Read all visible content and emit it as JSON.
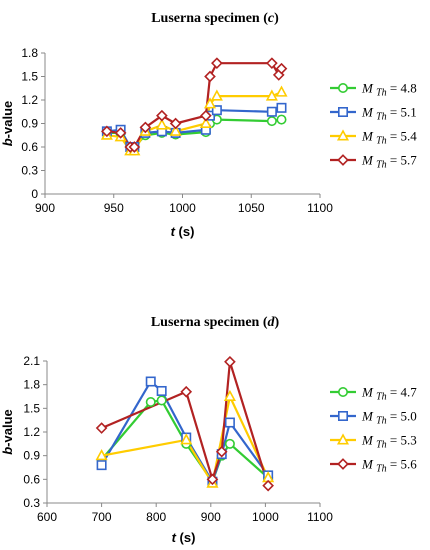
{
  "chart_data": [
    {
      "type": "line",
      "title": "Luserna specimen (c)",
      "title_prefix": "Luserna specimen (",
      "title_letter": "c",
      "title_suffix": ")",
      "xlabel": "t (s)",
      "xlabel_var": "t",
      "xlabel_unit": " (s)",
      "ylabel": "b-value",
      "ylabel_var": "b",
      "ylabel_rest": "-value",
      "xlim": [
        900,
        1100
      ],
      "ylim": [
        0,
        1.8
      ],
      "xticks": [
        "900",
        "950",
        "1000",
        "1050",
        "1100"
      ],
      "yticks": [
        "0",
        "0.3",
        "0.6",
        "0.9",
        "1.2",
        "1.5",
        "1.8"
      ],
      "grid": false,
      "legend": "right",
      "series": [
        {
          "name": "M Th = 4.8",
          "legend_m": "M",
          "legend_sub": "Th",
          "legend_val": " = 4.8",
          "color": "#33cc33",
          "marker": "circle",
          "points": [
            [
              945,
              0.78
            ],
            [
              955,
              0.78
            ],
            [
              962,
              0.6
            ],
            [
              965,
              0.6
            ],
            [
              973,
              0.75
            ],
            [
              985,
              0.78
            ],
            [
              995,
              0.76
            ],
            [
              1017,
              0.79
            ],
            [
              1020,
              0.9
            ],
            [
              1025,
              0.95
            ],
            [
              1065,
              0.93
            ],
            [
              1072,
              0.95
            ]
          ]
        },
        {
          "name": "M Th = 5.1",
          "legend_m": "M",
          "legend_sub": "Th",
          "legend_val": " = 5.1",
          "color": "#3366cc",
          "marker": "square",
          "points": [
            [
              945,
              0.8
            ],
            [
              955,
              0.82
            ],
            [
              962,
              0.6
            ],
            [
              965,
              0.6
            ],
            [
              973,
              0.78
            ],
            [
              985,
              0.8
            ],
            [
              995,
              0.78
            ],
            [
              1017,
              0.82
            ],
            [
              1020,
              1.0
            ],
            [
              1025,
              1.07
            ],
            [
              1065,
              1.05
            ],
            [
              1072,
              1.1
            ]
          ]
        },
        {
          "name": "M Th = 5.4",
          "legend_m": "M",
          "legend_sub": "Th",
          "legend_val": " = 5.4",
          "color": "#ffcc00",
          "marker": "triangle",
          "points": [
            [
              945,
              0.75
            ],
            [
              955,
              0.73
            ],
            [
              962,
              0.55
            ],
            [
              965,
              0.55
            ],
            [
              973,
              0.8
            ],
            [
              985,
              0.88
            ],
            [
              995,
              0.8
            ],
            [
              1017,
              0.9
            ],
            [
              1020,
              1.15
            ],
            [
              1025,
              1.25
            ],
            [
              1065,
              1.25
            ],
            [
              1072,
              1.3
            ]
          ]
        },
        {
          "name": "M Th = 5.7",
          "legend_m": "M",
          "legend_sub": "Th",
          "legend_val": " = 5.7",
          "color": "#b22222",
          "marker": "diamond",
          "points": [
            [
              945,
              0.8
            ],
            [
              955,
              0.78
            ],
            [
              962,
              0.6
            ],
            [
              965,
              0.6
            ],
            [
              973,
              0.85
            ],
            [
              985,
              1.0
            ],
            [
              995,
              0.9
            ],
            [
              1017,
              1.0
            ],
            [
              1020,
              1.5
            ],
            [
              1025,
              1.67
            ],
            [
              1065,
              1.67
            ],
            [
              1070,
              1.52
            ],
            [
              1072,
              1.6
            ]
          ]
        }
      ]
    },
    {
      "type": "line",
      "title": "Luserna specimen (d)",
      "title_prefix": "Luserna specimen (",
      "title_letter": "d",
      "title_suffix": ")",
      "xlabel": "t (s)",
      "xlabel_var": "t",
      "xlabel_unit": " (s)",
      "ylabel": "b-value",
      "ylabel_var": "b",
      "ylabel_rest": "-value",
      "xlim": [
        600,
        1100
      ],
      "ylim": [
        0.3,
        2.1
      ],
      "xticks": [
        "600",
        "700",
        "800",
        "900",
        "1000",
        "1100"
      ],
      "yticks": [
        "0.3",
        "0.6",
        "0.9",
        "1.2",
        "1.5",
        "1.8",
        "2.1"
      ],
      "grid": false,
      "legend": "right",
      "series": [
        {
          "name": "M Th = 4.7",
          "legend_m": "M",
          "legend_sub": "Th",
          "legend_val": " = 4.7",
          "color": "#33cc33",
          "marker": "circle",
          "points": [
            [
              700,
              0.85
            ],
            [
              790,
              1.58
            ],
            [
              810,
              1.6
            ],
            [
              855,
              1.05
            ],
            [
              903,
              0.57
            ],
            [
              920,
              0.9
            ],
            [
              935,
              1.05
            ],
            [
              1005,
              0.62
            ]
          ]
        },
        {
          "name": "M Th = 5.0",
          "legend_m": "M",
          "legend_sub": "Th",
          "legend_val": " = 5.0",
          "color": "#3366cc",
          "marker": "square",
          "points": [
            [
              700,
              0.78
            ],
            [
              790,
              1.84
            ],
            [
              810,
              1.72
            ],
            [
              855,
              1.13
            ],
            [
              903,
              0.57
            ],
            [
              920,
              0.92
            ],
            [
              935,
              1.32
            ],
            [
              1005,
              0.65
            ]
          ]
        },
        {
          "name": "M Th = 5.3",
          "legend_m": "M",
          "legend_sub": "Th",
          "legend_val": " = 5.3",
          "color": "#ffcc00",
          "marker": "triangle",
          "points": [
            [
              700,
              0.9
            ],
            [
              855,
              1.1
            ],
            [
              903,
              0.55
            ],
            [
              935,
              1.65
            ],
            [
              1005,
              0.62
            ]
          ]
        },
        {
          "name": "M Th = 5.6",
          "legend_m": "M",
          "legend_sub": "Th",
          "legend_val": " = 5.6",
          "color": "#b22222",
          "marker": "diamond",
          "points": [
            [
              700,
              1.25
            ],
            [
              855,
              1.71
            ],
            [
              903,
              0.6
            ],
            [
              920,
              0.95
            ],
            [
              935,
              2.09
            ],
            [
              1005,
              0.52
            ]
          ]
        }
      ]
    }
  ]
}
